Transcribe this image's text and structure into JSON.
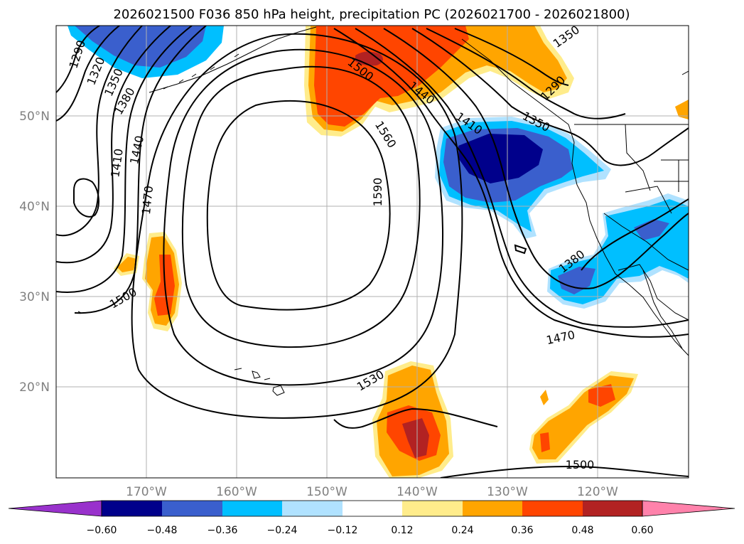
{
  "title": "2026021500 F036 850 hPa height, precipitation PC (2026021700 - 2026021800)",
  "lon_ticks": [
    "170°W",
    "160°W",
    "150°W",
    "140°W",
    "130°W",
    "120°W"
  ],
  "lat_ticks": [
    "50°N",
    "40°N",
    "30°N",
    "20°N"
  ],
  "contour_labels": [
    "1290",
    "1320",
    "1350",
    "1380",
    "1410",
    "1440",
    "1470",
    "1500",
    "1500",
    "1560",
    "1590",
    "1440",
    "1410",
    "1350",
    "1290",
    "1350",
    "1380",
    "1470",
    "1530",
    "1500"
  ],
  "colorbar": {
    "ticks": [
      "−0.60",
      "−0.48",
      "−0.36",
      "−0.24",
      "−0.12",
      "0.12",
      "0.24",
      "0.36",
      "0.48",
      "0.60"
    ],
    "colors": [
      "#9932cc",
      "#00008b",
      "#3a5fcd",
      "#00bfff",
      "#b0e2ff",
      "#ffffff",
      "#ffec8b",
      "#ffa500",
      "#ff4500",
      "#b22222",
      "#ff82ab"
    ]
  }
}
